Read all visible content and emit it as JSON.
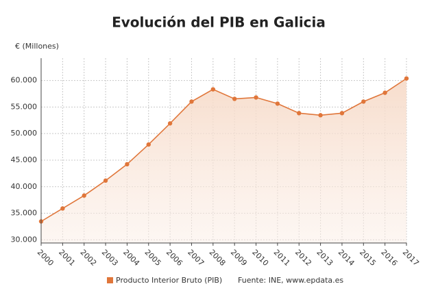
{
  "chart_data": {
    "type": "area",
    "title": "Evolución del PIB en Galicia",
    "y_label": "€ (Millones)",
    "categories": [
      "2000",
      "2001",
      "2002",
      "2003",
      "2004",
      "2005",
      "2006",
      "2007",
      "2008",
      "2009",
      "2010",
      "2011",
      "2012",
      "2013",
      "2014",
      "2015",
      "2016",
      "2017"
    ],
    "series": [
      {
        "name": "Producto Interior Bruto (PIB)",
        "color": "#e0763a",
        "values": [
          33460,
          35900,
          38330,
          41150,
          44230,
          47950,
          51920,
          56030,
          58330,
          56540,
          56800,
          55640,
          53850,
          53460,
          53850,
          56030,
          57690,
          60380
        ]
      }
    ],
    "ylim": [
      29400,
      64200
    ],
    "yticks": [
      {
        "value": 30000,
        "label": "30.000"
      },
      {
        "value": 35000,
        "label": "35.000"
      },
      {
        "value": 40000,
        "label": "40.000"
      },
      {
        "value": 45000,
        "label": "45.000"
      },
      {
        "value": 50000,
        "label": "50.000"
      },
      {
        "value": 55000,
        "label": "55.000"
      },
      {
        "value": 60000,
        "label": "60.000"
      }
    ],
    "grid": true,
    "source": "Fuente: INE, www.epdata.es"
  }
}
